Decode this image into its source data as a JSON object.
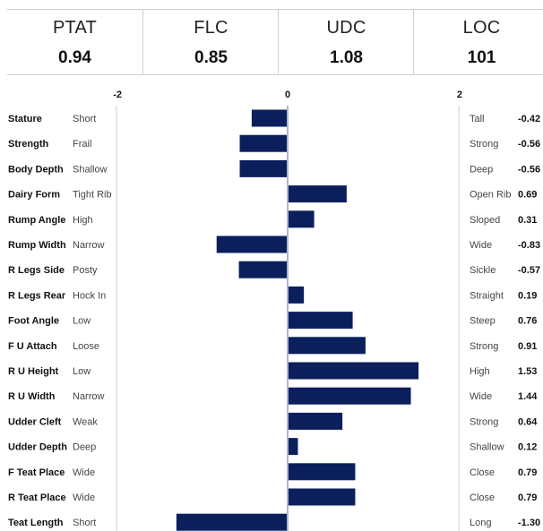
{
  "summary": [
    {
      "name": "PTAT",
      "value": "0.94"
    },
    {
      "name": "FLC",
      "value": "0.85"
    },
    {
      "name": "UDC",
      "value": "1.08"
    },
    {
      "name": "LOC",
      "value": "101"
    }
  ],
  "colors": {
    "bar": "#0b1f5c",
    "axis": "#a9b8cc",
    "border": "#cfcfcf"
  },
  "chart_data": {
    "type": "bar",
    "orientation": "horizontal",
    "xlim": [
      -2,
      2
    ],
    "ticks": [
      "-2",
      "0",
      "2"
    ],
    "categories": [
      "Stature",
      "Strength",
      "Body Depth",
      "Dairy Form",
      "Rump Angle",
      "Rump Width",
      "R Legs Side",
      "R Legs Rear",
      "Foot Angle",
      "F U Attach",
      "R U Height",
      "R U Width",
      "Udder Cleft",
      "Udder Depth",
      "F Teat Place",
      "R Teat Place",
      "Teat Length"
    ],
    "low_labels": [
      "Short",
      "Frail",
      "Shallow",
      "Tight Rib",
      "High",
      "Narrow",
      "Posty",
      "Hock In",
      "Low",
      "Loose",
      "Low",
      "Narrow",
      "Weak",
      "Deep",
      "Wide",
      "Wide",
      "Short"
    ],
    "high_labels": [
      "Tall",
      "Strong",
      "Deep",
      "Open Rib",
      "Sloped",
      "Wide",
      "Sickle",
      "Straight",
      "Steep",
      "Strong",
      "High",
      "Wide",
      "Strong",
      "Shallow",
      "Close",
      "Close",
      "Long"
    ],
    "values": [
      -0.42,
      -0.56,
      -0.56,
      0.69,
      0.31,
      -0.83,
      -0.57,
      0.19,
      0.76,
      0.91,
      1.53,
      1.44,
      0.64,
      0.12,
      0.79,
      0.79,
      -1.3
    ],
    "value_labels": [
      "-0.42",
      "-0.56",
      "-0.56",
      "0.69",
      "0.31",
      "-0.83",
      "-0.57",
      "0.19",
      "0.76",
      "0.91",
      "1.53",
      "1.44",
      "0.64",
      "0.12",
      "0.79",
      "0.79",
      "-1.30"
    ]
  }
}
